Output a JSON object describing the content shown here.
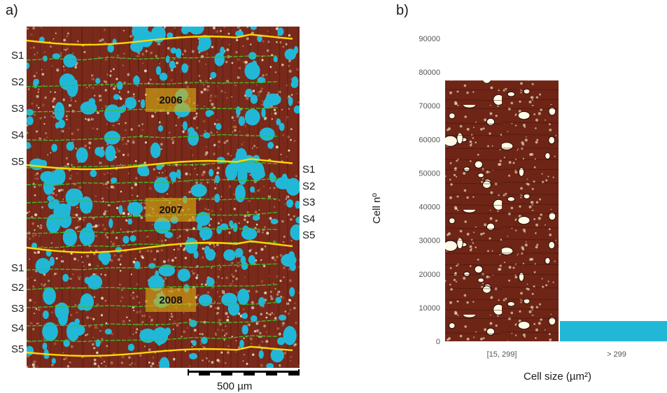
{
  "panel_a": {
    "label": "a)",
    "left_labels": [
      "S1",
      "S2",
      "S3",
      "S4",
      "S5",
      "S1",
      "S2",
      "S3",
      "S4",
      "S5"
    ],
    "right_labels": [
      "S1",
      "S2",
      "S3",
      "S4",
      "S5"
    ],
    "years": [
      "2006",
      "2007",
      "2008"
    ],
    "scale_bar": "500 µm",
    "colors": {
      "wood": "#7a2a1a",
      "vessel": "#21b8d8",
      "ring_boundary": "#ffd700",
      "sector_line": "#3bbf2a",
      "year_box": "#d9ae14"
    }
  },
  "chart_data": {
    "label": "b)",
    "type": "bar",
    "categories": [
      "[15, 299]",
      "> 299"
    ],
    "values": [
      77500,
      6000
    ],
    "ylabel": "Cell nº",
    "xlabel": "Cell size (µm²)",
    "ylim": [
      0,
      90000
    ],
    "yticks": [
      0,
      10000,
      20000,
      30000,
      40000,
      50000,
      60000,
      70000,
      80000,
      90000
    ],
    "grid": false,
    "bar_styles": [
      "wood-texture",
      "#21b8d8"
    ]
  }
}
